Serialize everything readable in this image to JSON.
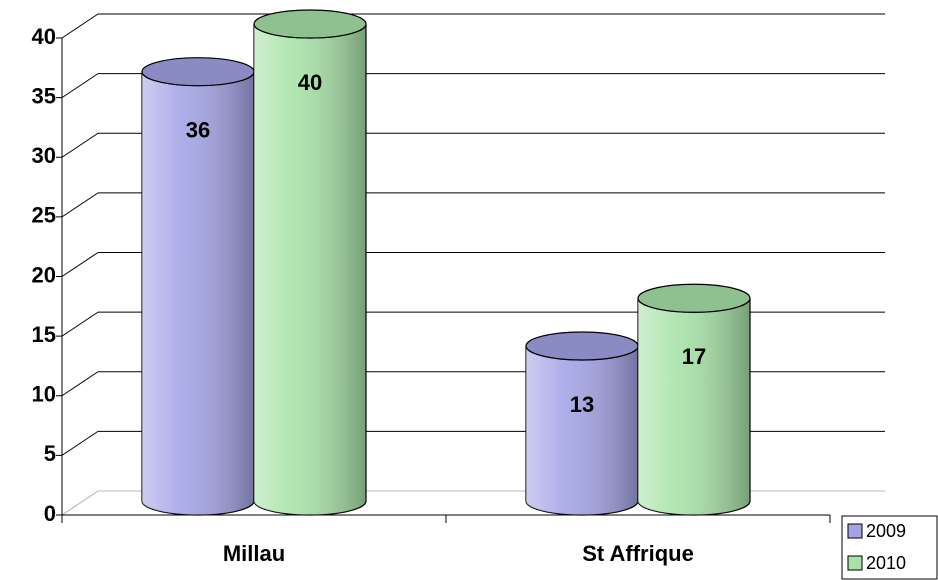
{
  "chart_data": {
    "type": "bar",
    "categories": [
      "Millau",
      "St Affrique"
    ],
    "series": [
      {
        "name": "2009",
        "color": "#a4a4e6",
        "values": [
          36,
          13
        ]
      },
      {
        "name": "2010",
        "color": "#a8e2a8",
        "values": [
          40,
          17
        ]
      }
    ],
    "ylim": [
      0,
      40
    ],
    "yticks": [
      0,
      5,
      10,
      15,
      20,
      25,
      30,
      35,
      40
    ],
    "grid": true,
    "legend": "bottom-right"
  }
}
